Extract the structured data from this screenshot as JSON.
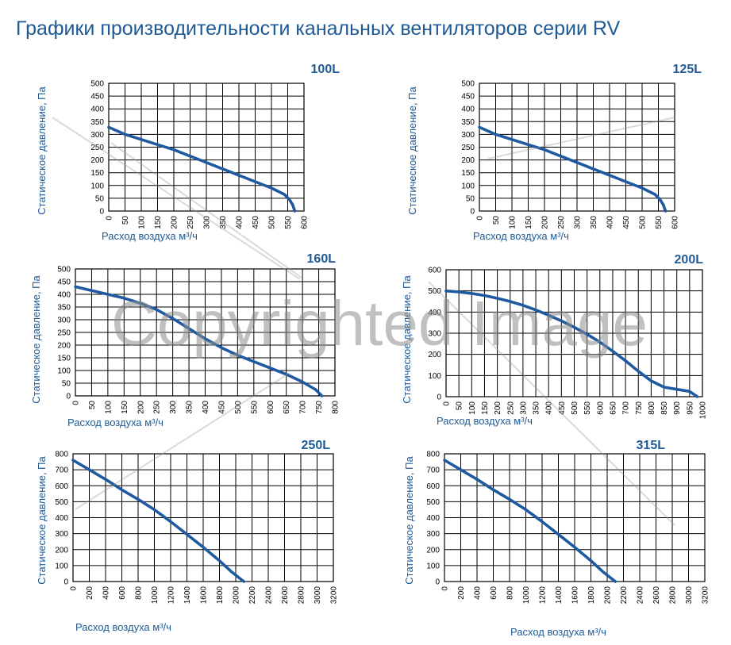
{
  "page": {
    "title": "Графики производительности канальных вентиляторов серии RV",
    "watermark": "Copyrighted Image"
  },
  "colors": {
    "title": "#1f5a96",
    "label": "#1f5a96",
    "curve": "#1f5aa0",
    "grid": "#000000",
    "ticks": "#000000",
    "background": "#ffffff"
  },
  "chart_data": [
    {
      "type": "line",
      "title": "100L",
      "xlabel": "Расход воздуха м³/ч",
      "ylabel": "Статическое давление, Па",
      "xlim": [
        0,
        600
      ],
      "ylim": [
        0,
        500
      ],
      "xticks": [
        0,
        50,
        100,
        150,
        200,
        250,
        300,
        350,
        400,
        450,
        500,
        550,
        600
      ],
      "yticks": [
        0,
        50,
        100,
        150,
        200,
        250,
        300,
        350,
        400,
        450,
        500
      ],
      "grid": true,
      "series": [
        {
          "x": [
            0,
            50,
            100,
            150,
            200,
            250,
            300,
            350,
            400,
            450,
            500,
            540,
            555,
            565,
            572
          ],
          "y": [
            328,
            300,
            280,
            260,
            240,
            215,
            190,
            165,
            140,
            115,
            90,
            65,
            45,
            25,
            0
          ]
        }
      ]
    },
    {
      "type": "line",
      "title": "125L",
      "xlabel": "Расход воздуха м³/ч",
      "ylabel": "Статическое давление, Па",
      "xlim": [
        0,
        600
      ],
      "ylim": [
        0,
        500
      ],
      "xticks": [
        0,
        50,
        100,
        150,
        200,
        250,
        300,
        350,
        400,
        450,
        500,
        550,
        600
      ],
      "yticks": [
        0,
        50,
        100,
        150,
        200,
        250,
        300,
        350,
        400,
        450,
        500
      ],
      "grid": true,
      "series": [
        {
          "x": [
            0,
            50,
            100,
            150,
            200,
            250,
            300,
            350,
            400,
            450,
            500,
            540,
            555,
            565,
            572
          ],
          "y": [
            328,
            300,
            280,
            260,
            240,
            215,
            190,
            165,
            140,
            115,
            90,
            65,
            45,
            25,
            0
          ]
        }
      ]
    },
    {
      "type": "line",
      "title": "160L",
      "xlabel": "Расход воздуха м³/ч",
      "ylabel": "Статическое давление, Па",
      "xlim": [
        0,
        800
      ],
      "ylim": [
        0,
        500
      ],
      "xticks": [
        0,
        50,
        100,
        150,
        200,
        250,
        300,
        350,
        400,
        450,
        500,
        550,
        600,
        650,
        700,
        750,
        800
      ],
      "yticks": [
        0,
        50,
        100,
        150,
        200,
        250,
        300,
        350,
        400,
        450,
        500
      ],
      "grid": true,
      "series": [
        {
          "x": [
            0,
            50,
            100,
            150,
            200,
            250,
            300,
            350,
            400,
            450,
            500,
            550,
            600,
            650,
            700,
            740,
            760
          ],
          "y": [
            430,
            415,
            400,
            385,
            365,
            340,
            305,
            265,
            225,
            190,
            160,
            135,
            110,
            85,
            55,
            25,
            0
          ]
        }
      ]
    },
    {
      "type": "line",
      "title": "200L",
      "xlabel": "Расход воздуха м³/ч",
      "ylabel": "Статическое давление, Па",
      "xlim": [
        0,
        1000
      ],
      "ylim": [
        0,
        600
      ],
      "xticks": [
        0,
        50,
        100,
        150,
        200,
        250,
        300,
        350,
        400,
        450,
        500,
        550,
        600,
        650,
        700,
        750,
        800,
        850,
        900,
        950,
        1000
      ],
      "yticks": [
        0,
        100,
        200,
        300,
        400,
        500,
        600
      ],
      "grid": true,
      "series": [
        {
          "x": [
            0,
            50,
            100,
            150,
            200,
            250,
            300,
            350,
            400,
            450,
            500,
            550,
            600,
            650,
            700,
            750,
            800,
            850,
            900,
            950,
            980
          ],
          "y": [
            500,
            495,
            488,
            478,
            465,
            450,
            432,
            410,
            385,
            358,
            328,
            295,
            258,
            215,
            170,
            120,
            75,
            45,
            35,
            25,
            0
          ]
        }
      ]
    },
    {
      "type": "line",
      "title": "250L",
      "xlabel": "Расход воздуха м³/ч",
      "ylabel": "Статическое давление, Па",
      "xlim": [
        0,
        3200
      ],
      "ylim": [
        0,
        800
      ],
      "xticks": [
        0,
        200,
        400,
        600,
        800,
        1000,
        1200,
        1400,
        1600,
        1800,
        2000,
        2200,
        2400,
        2600,
        2800,
        3000,
        3200
      ],
      "yticks": [
        0,
        100,
        200,
        300,
        400,
        500,
        600,
        700,
        800
      ],
      "grid": true,
      "series": [
        {
          "x": [
            0,
            200,
            400,
            600,
            800,
            1000,
            1200,
            1400,
            1600,
            1800,
            1950,
            2050,
            2100
          ],
          "y": [
            760,
            700,
            640,
            575,
            515,
            450,
            375,
            295,
            215,
            130,
            60,
            20,
            0
          ]
        }
      ]
    },
    {
      "type": "line",
      "title": "315L",
      "xlabel": "Расход воздуха м³/ч",
      "ylabel": "Статическое давление, Па",
      "xlim": [
        0,
        3200
      ],
      "ylim": [
        0,
        800
      ],
      "xticks": [
        0,
        200,
        400,
        600,
        800,
        1000,
        1200,
        1400,
        1600,
        1800,
        2000,
        2200,
        2400,
        2600,
        2800,
        3000,
        3200
      ],
      "yticks": [
        0,
        100,
        200,
        300,
        400,
        500,
        600,
        700,
        800
      ],
      "grid": true,
      "series": [
        {
          "x": [
            0,
            200,
            400,
            600,
            800,
            1000,
            1200,
            1400,
            1600,
            1800,
            1950,
            2050,
            2100
          ],
          "y": [
            760,
            700,
            640,
            575,
            515,
            450,
            375,
            295,
            215,
            130,
            60,
            20,
            0
          ]
        }
      ]
    }
  ]
}
